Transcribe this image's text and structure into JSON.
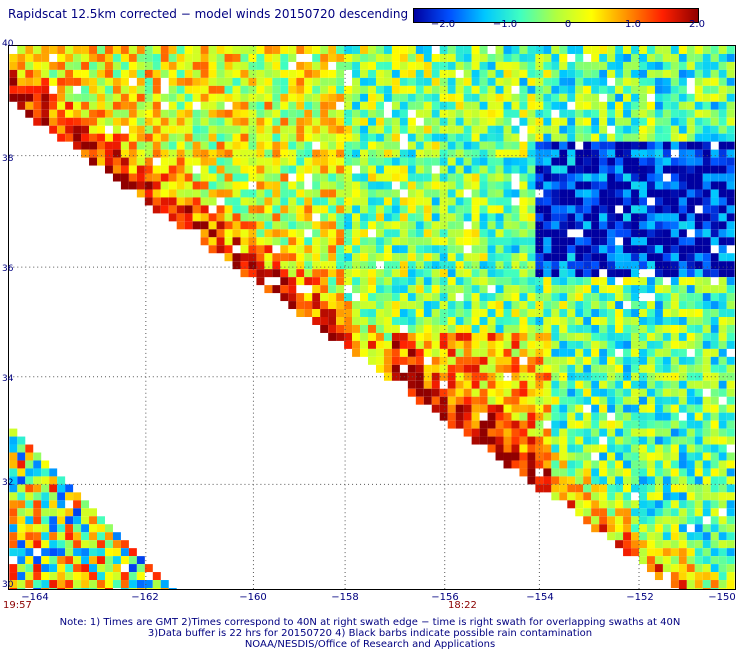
{
  "title": "Rapidscat 12.5km corrected − model winds 20150720 descending",
  "colorbar": {
    "ticks": [
      "−2.0",
      "−1.0",
      "0",
      "1.0",
      "2.0"
    ],
    "colors": [
      "#0000a0",
      "#0050ff",
      "#00c8ff",
      "#40ffc0",
      "#b0ff40",
      "#ffff00",
      "#ff9000",
      "#ff2000",
      "#900000"
    ]
  },
  "map": {
    "lat_labels": [
      "40",
      "38",
      "36",
      "34",
      "32",
      "30"
    ],
    "lon_labels": [
      "−164",
      "−162",
      "−160",
      "−158",
      "−156",
      "−154",
      "−152",
      "−150"
    ],
    "time_left": "19:57",
    "time_mid": "18:22"
  },
  "notes": [
    "Note: 1) Times are GMT 2)Times correspond to 40N at right swath edge − time is right swath for overlapping swaths at 40N",
    "3)Data buffer is 22 hrs for 20150720 4) Black barbs indicate possible rain contamination",
    "NOAA/NESDIS/Office of Research and Applications"
  ]
}
